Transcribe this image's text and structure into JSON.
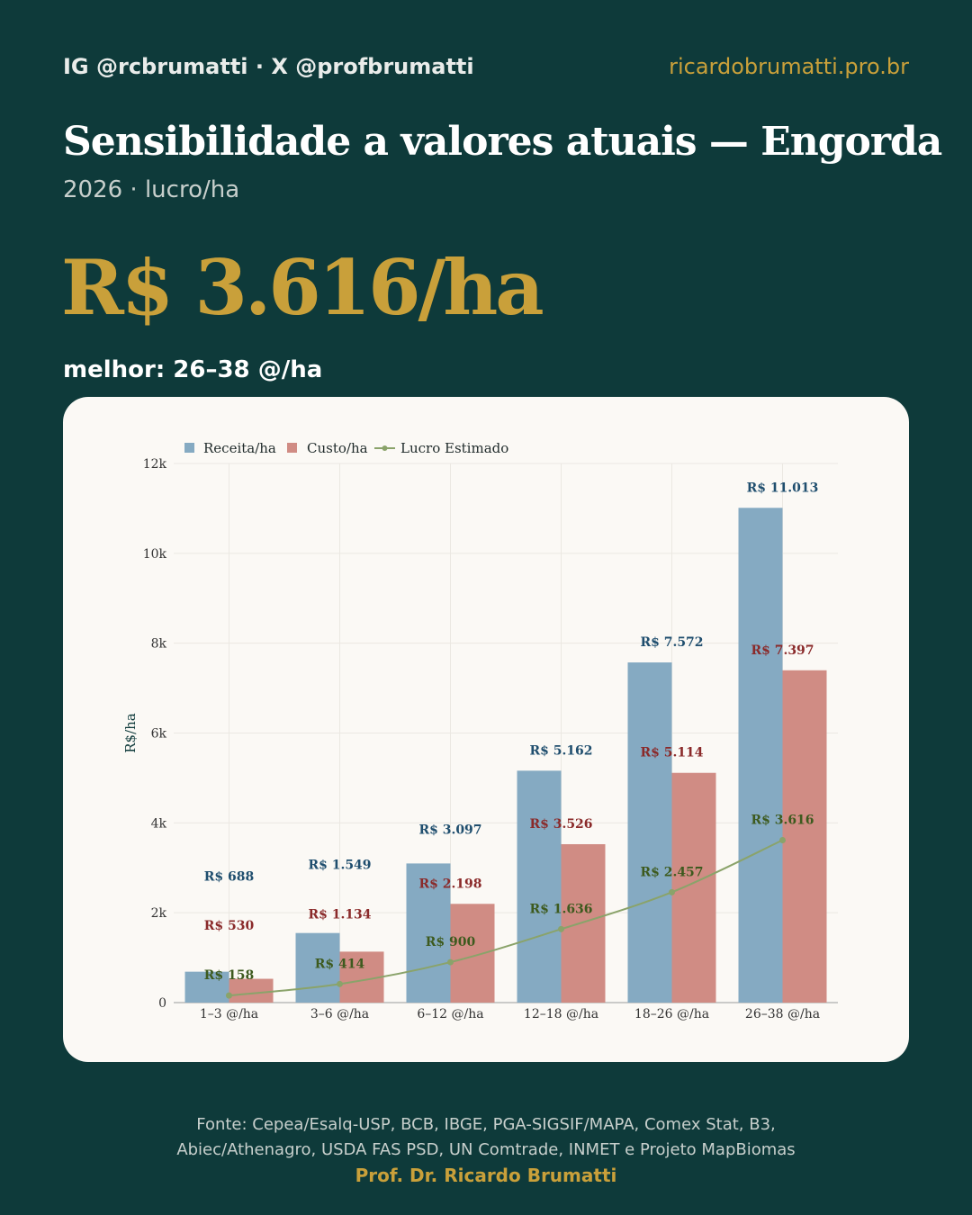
{
  "header": {
    "handles": "IG @rcbrumatti · X @profbrumatti",
    "site": "ricardobrumatti.pro.br"
  },
  "title": "Sensibilidade a valores atuais — Engorda",
  "subtitle": "2026 · lucro/ha",
  "highlight": {
    "value": "R$ 3.616/ha",
    "best": "melhor: 26–38 @/ha"
  },
  "colors": {
    "background": "#0e3a3a",
    "accent": "#c9a03a",
    "receita": "#85aac2",
    "custo": "#d08c84",
    "lucro": "#8aa36a",
    "receita_label": "#1f4e6e",
    "custo_label": "#8a2a2a",
    "lucro_label": "#3d5a1e"
  },
  "chart_data": {
    "type": "bar",
    "categories": [
      "1–3 @/ha",
      "3–6 @/ha",
      "6–12 @/ha",
      "12–18 @/ha",
      "18–26 @/ha",
      "26–38 @/ha"
    ],
    "series": [
      {
        "name": "Receita/ha",
        "kind": "bar",
        "values": [
          688,
          1549,
          3097,
          5162,
          7572,
          11013
        ],
        "labels": [
          "R$ 688",
          "R$ 1.549",
          "R$ 3.097",
          "R$ 5.162",
          "R$ 7.572",
          "R$ 11.013"
        ]
      },
      {
        "name": "Custo/ha",
        "kind": "bar",
        "values": [
          530,
          1134,
          2198,
          3526,
          5114,
          7397
        ],
        "labels": [
          "R$ 530",
          "R$ 1.134",
          "R$ 2.198",
          "R$ 3.526",
          "R$ 5.114",
          "R$ 7.397"
        ]
      },
      {
        "name": "Lucro Estimado",
        "kind": "line",
        "values": [
          158,
          414,
          900,
          1636,
          2457,
          3616
        ],
        "labels": [
          "R$ 158",
          "R$ 414",
          "R$ 900",
          "R$ 1.636",
          "R$ 2.457",
          "R$ 3.616"
        ]
      }
    ],
    "ylabel": "R$/ha",
    "ylim": [
      0,
      12000
    ],
    "yticks": [
      0,
      2000,
      4000,
      6000,
      8000,
      10000,
      12000
    ],
    "ytick_labels": [
      "0",
      "2k",
      "4k",
      "6k",
      "8k",
      "10k",
      "12k"
    ],
    "grid": true,
    "legend": "top-left"
  },
  "footer": {
    "source_line1": "Fonte: Cepea/Esalq-USP, BCB, IBGE, PGA-SIGSIF/MAPA, Comex Stat, B3,",
    "source_line2": "Abiec/Athenagro, USDA FAS PSD, UN Comtrade, INMET e Projeto MapBiomas",
    "author": "Prof. Dr. Ricardo Brumatti"
  }
}
